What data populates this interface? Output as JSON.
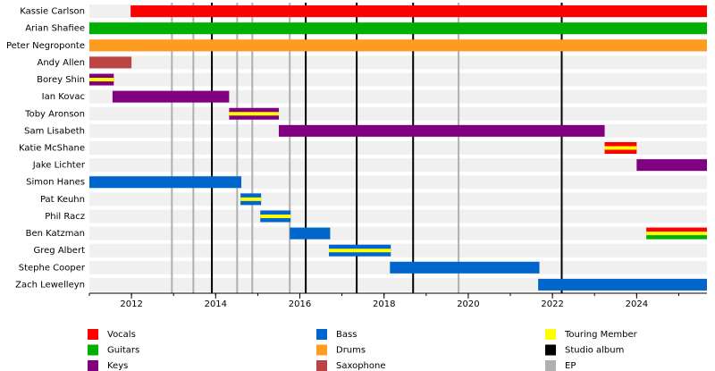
{
  "chart_data": {
    "type": "timeline",
    "xlim": [
      2011,
      2025.67
    ],
    "xticks": [
      2012,
      2014,
      2016,
      2018,
      2020,
      2022,
      2024
    ],
    "xticks_minor": [
      2011,
      2012,
      2013,
      2014,
      2015,
      2016,
      2017,
      2018,
      2019,
      2020,
      2021,
      2022,
      2023,
      2024,
      2025
    ],
    "legend": [
      {
        "name": "Vocals",
        "color": "#ff0000"
      },
      {
        "name": "Guitars",
        "color": "#00b000"
      },
      {
        "name": "Keys",
        "color": "#800080"
      },
      {
        "name": "Bass",
        "color": "#0066cc"
      },
      {
        "name": "Drums",
        "color": "#ff9c20"
      },
      {
        "name": "Saxophone",
        "color": "#bb4444"
      },
      {
        "name": "Touring Member",
        "color": "#ffff00"
      },
      {
        "name": "Studio album",
        "color": "#000000"
      },
      {
        "name": "EP",
        "color": "#b0b0b0"
      }
    ],
    "studio_albums": [
      2013.91,
      2016.14,
      2017.35,
      2018.69,
      2022.22
    ],
    "eps": [
      2012.96,
      2013.47,
      2014.51,
      2014.87,
      2015.76,
      2019.77
    ],
    "members": [
      {
        "name": "Kassie Carlson",
        "periods": [
          {
            "start": 2011.98,
            "end": 2025.67,
            "roles": [
              "Vocals"
            ],
            "touring": false
          }
        ]
      },
      {
        "name": "Arian Shafiee",
        "periods": [
          {
            "start": 2011,
            "end": 2025.67,
            "roles": [
              "Guitars"
            ],
            "touring": false
          }
        ]
      },
      {
        "name": "Peter Negroponte",
        "periods": [
          {
            "start": 2011,
            "end": 2025.67,
            "roles": [
              "Drums"
            ],
            "touring": false
          }
        ]
      },
      {
        "name": "Andy Allen",
        "periods": [
          {
            "start": 2011,
            "end": 2012,
            "roles": [
              "Saxophone"
            ],
            "touring": false
          }
        ]
      },
      {
        "name": "Borey Shin",
        "periods": [
          {
            "start": 2011,
            "end": 2011.58,
            "roles": [
              "Keys"
            ],
            "touring": true
          }
        ]
      },
      {
        "name": "Ian Kovac",
        "periods": [
          {
            "start": 2011.55,
            "end": 2014.32,
            "roles": [
              "Keys"
            ],
            "touring": false
          }
        ]
      },
      {
        "name": "Toby Aronson",
        "periods": [
          {
            "start": 2014.32,
            "end": 2015.5,
            "roles": [
              "Keys"
            ],
            "touring": true
          }
        ]
      },
      {
        "name": "Sam Lisabeth",
        "periods": [
          {
            "start": 2015.5,
            "end": 2023.24,
            "roles": [
              "Keys"
            ],
            "touring": false
          }
        ]
      },
      {
        "name": "Katie McShane",
        "periods": [
          {
            "start": 2023.24,
            "end": 2024,
            "roles": [
              "Vocals"
            ],
            "touring": true
          }
        ]
      },
      {
        "name": "Jake Lichter",
        "periods": [
          {
            "start": 2024,
            "end": 2025.67,
            "roles": [
              "Keys"
            ],
            "touring": false
          }
        ]
      },
      {
        "name": "Simon Hanes",
        "periods": [
          {
            "start": 2011,
            "end": 2014.61,
            "roles": [
              "Bass"
            ],
            "touring": false
          }
        ]
      },
      {
        "name": "Pat Keuhn",
        "periods": [
          {
            "start": 2014.59,
            "end": 2015.08,
            "roles": [
              "Bass"
            ],
            "touring": true
          }
        ]
      },
      {
        "name": "Phil Racz",
        "periods": [
          {
            "start": 2015.06,
            "end": 2015.78,
            "roles": [
              "Bass"
            ],
            "touring": true
          }
        ]
      },
      {
        "name": "Ben Katzman",
        "periods": [
          {
            "start": 2015.76,
            "end": 2016.72,
            "roles": [
              "Bass"
            ],
            "touring": false
          },
          {
            "start": 2024.23,
            "end": 2025.67,
            "roles": [
              "Vocals",
              "Guitars"
            ],
            "touring": true
          }
        ]
      },
      {
        "name": "Greg Albert",
        "periods": [
          {
            "start": 2016.69,
            "end": 2018.16,
            "roles": [
              "Bass"
            ],
            "touring": true
          }
        ]
      },
      {
        "name": "Stephe Cooper",
        "periods": [
          {
            "start": 2018.14,
            "end": 2021.69,
            "roles": [
              "Bass"
            ],
            "touring": false
          }
        ]
      },
      {
        "name": "Zach Lewelleyn",
        "periods": [
          {
            "start": 2021.66,
            "end": 2025.67,
            "roles": [
              "Bass"
            ],
            "touring": false
          }
        ]
      }
    ]
  }
}
